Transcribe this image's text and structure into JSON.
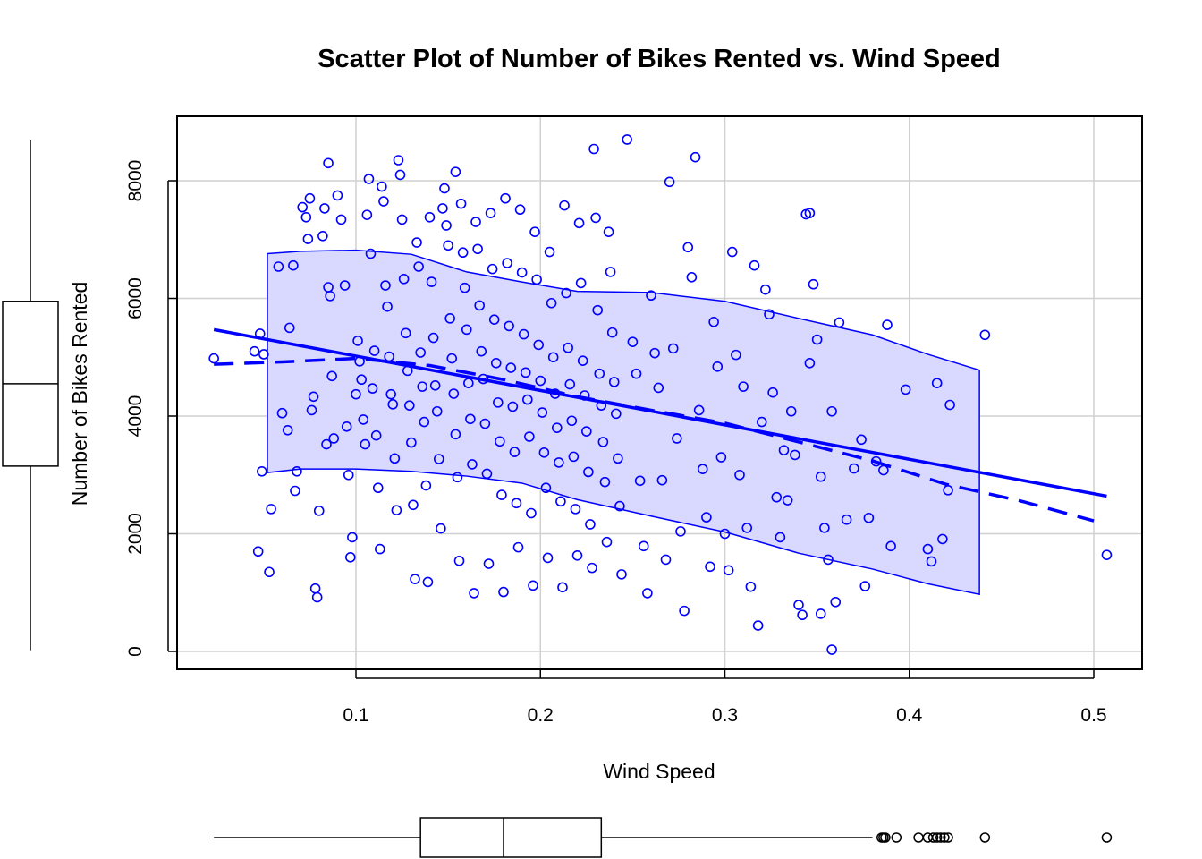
{
  "chart_data": {
    "type": "scatter",
    "title": "Scatter Plot of Number of Bikes Rented vs. Wind Speed",
    "xlabel": "Wind Speed",
    "ylabel": "Number of Bikes Rented",
    "xlim": [
      0.02,
      0.52
    ],
    "ylim": [
      -300,
      9000
    ],
    "x_ticks": [
      0.1,
      0.2,
      0.3,
      0.4,
      0.5
    ],
    "x_tick_labels": [
      "0.1",
      "0.2",
      "0.3",
      "0.4",
      "0.5"
    ],
    "y_ticks": [
      0,
      2000,
      4000,
      6000,
      8000
    ],
    "y_tick_labels": [
      "0",
      "2000",
      "4000",
      "6000",
      "8000"
    ],
    "grid": true,
    "point_color": "#0000ff",
    "band_fill": "#d9d9ff",
    "points": [
      [
        0.023,
        4980
      ],
      [
        0.045,
        5100
      ],
      [
        0.048,
        5400
      ],
      [
        0.05,
        5050
      ],
      [
        0.047,
        1700
      ],
      [
        0.053,
        1350
      ],
      [
        0.054,
        2420
      ],
      [
        0.049,
        3060
      ],
      [
        0.058,
        6540
      ],
      [
        0.06,
        4050
      ],
      [
        0.063,
        3760
      ],
      [
        0.064,
        5500
      ],
      [
        0.066,
        6560
      ],
      [
        0.067,
        2730
      ],
      [
        0.068,
        3060
      ],
      [
        0.071,
        7550
      ],
      [
        0.073,
        7380
      ],
      [
        0.074,
        7010
      ],
      [
        0.075,
        7700
      ],
      [
        0.076,
        4100
      ],
      [
        0.077,
        4330
      ],
      [
        0.078,
        1070
      ],
      [
        0.079,
        920
      ],
      [
        0.08,
        2390
      ],
      [
        0.082,
        7060
      ],
      [
        0.083,
        7530
      ],
      [
        0.084,
        3520
      ],
      [
        0.085,
        6190
      ],
      [
        0.086,
        6040
      ],
      [
        0.087,
        4680
      ],
      [
        0.088,
        3620
      ],
      [
        0.085,
        8300
      ],
      [
        0.09,
        7750
      ],
      [
        0.092,
        7340
      ],
      [
        0.094,
        6220
      ],
      [
        0.095,
        3820
      ],
      [
        0.096,
        3000
      ],
      [
        0.097,
        1600
      ],
      [
        0.098,
        1940
      ],
      [
        0.1,
        4370
      ],
      [
        0.101,
        5280
      ],
      [
        0.102,
        4930
      ],
      [
        0.103,
        4620
      ],
      [
        0.104,
        3940
      ],
      [
        0.105,
        3520
      ],
      [
        0.106,
        7420
      ],
      [
        0.107,
        8030
      ],
      [
        0.108,
        6760
      ],
      [
        0.109,
        4470
      ],
      [
        0.11,
        5110
      ],
      [
        0.111,
        3670
      ],
      [
        0.112,
        2780
      ],
      [
        0.113,
        1740
      ],
      [
        0.114,
        7900
      ],
      [
        0.115,
        7650
      ],
      [
        0.116,
        6220
      ],
      [
        0.117,
        5860
      ],
      [
        0.118,
        5010
      ],
      [
        0.119,
        4370
      ],
      [
        0.12,
        4200
      ],
      [
        0.121,
        3280
      ],
      [
        0.122,
        2400
      ],
      [
        0.123,
        8350
      ],
      [
        0.124,
        8100
      ],
      [
        0.125,
        7340
      ],
      [
        0.126,
        6330
      ],
      [
        0.127,
        5410
      ],
      [
        0.128,
        4770
      ],
      [
        0.129,
        4180
      ],
      [
        0.13,
        3550
      ],
      [
        0.131,
        2490
      ],
      [
        0.132,
        1230
      ],
      [
        0.133,
        6950
      ],
      [
        0.134,
        6540
      ],
      [
        0.135,
        5080
      ],
      [
        0.136,
        4500
      ],
      [
        0.137,
        3900
      ],
      [
        0.138,
        2820
      ],
      [
        0.139,
        1180
      ],
      [
        0.14,
        7380
      ],
      [
        0.141,
        6280
      ],
      [
        0.142,
        5330
      ],
      [
        0.143,
        4520
      ],
      [
        0.144,
        4080
      ],
      [
        0.145,
        3270
      ],
      [
        0.146,
        2090
      ],
      [
        0.147,
        7530
      ],
      [
        0.148,
        7870
      ],
      [
        0.149,
        7240
      ],
      [
        0.15,
        6900
      ],
      [
        0.151,
        5660
      ],
      [
        0.152,
        4980
      ],
      [
        0.153,
        4380
      ],
      [
        0.154,
        3690
      ],
      [
        0.155,
        2960
      ],
      [
        0.156,
        1540
      ],
      [
        0.157,
        7610
      ],
      [
        0.158,
        6780
      ],
      [
        0.159,
        6180
      ],
      [
        0.16,
        5470
      ],
      [
        0.161,
        4560
      ],
      [
        0.162,
        3950
      ],
      [
        0.163,
        3180
      ],
      [
        0.164,
        990
      ],
      [
        0.165,
        7300
      ],
      [
        0.166,
        6840
      ],
      [
        0.167,
        5880
      ],
      [
        0.168,
        5100
      ],
      [
        0.169,
        4630
      ],
      [
        0.17,
        3870
      ],
      [
        0.171,
        3020
      ],
      [
        0.172,
        1490
      ],
      [
        0.173,
        7450
      ],
      [
        0.174,
        6500
      ],
      [
        0.175,
        5640
      ],
      [
        0.176,
        4900
      ],
      [
        0.177,
        4230
      ],
      [
        0.178,
        3570
      ],
      [
        0.179,
        2660
      ],
      [
        0.18,
        1010
      ],
      [
        0.181,
        7700
      ],
      [
        0.182,
        6600
      ],
      [
        0.183,
        5530
      ],
      [
        0.184,
        4820
      ],
      [
        0.185,
        4160
      ],
      [
        0.186,
        3390
      ],
      [
        0.187,
        2520
      ],
      [
        0.188,
        1770
      ],
      [
        0.189,
        7510
      ],
      [
        0.19,
        6440
      ],
      [
        0.191,
        5390
      ],
      [
        0.192,
        4740
      ],
      [
        0.193,
        4280
      ],
      [
        0.194,
        3650
      ],
      [
        0.195,
        2350
      ],
      [
        0.196,
        1120
      ],
      [
        0.197,
        7130
      ],
      [
        0.198,
        6320
      ],
      [
        0.199,
        5210
      ],
      [
        0.2,
        4600
      ],
      [
        0.201,
        4060
      ],
      [
        0.202,
        3380
      ],
      [
        0.203,
        2780
      ],
      [
        0.204,
        1590
      ],
      [
        0.205,
        6790
      ],
      [
        0.206,
        5920
      ],
      [
        0.207,
        5000
      ],
      [
        0.208,
        4380
      ],
      [
        0.209,
        3800
      ],
      [
        0.21,
        3210
      ],
      [
        0.211,
        2550
      ],
      [
        0.212,
        1090
      ],
      [
        0.213,
        7580
      ],
      [
        0.214,
        6090
      ],
      [
        0.215,
        5160
      ],
      [
        0.216,
        4540
      ],
      [
        0.217,
        3920
      ],
      [
        0.218,
        3310
      ],
      [
        0.219,
        2420
      ],
      [
        0.22,
        1630
      ],
      [
        0.221,
        7280
      ],
      [
        0.222,
        6260
      ],
      [
        0.223,
        4940
      ],
      [
        0.224,
        4350
      ],
      [
        0.225,
        3740
      ],
      [
        0.226,
        3050
      ],
      [
        0.227,
        2160
      ],
      [
        0.228,
        1420
      ],
      [
        0.229,
        8540
      ],
      [
        0.23,
        7370
      ],
      [
        0.231,
        5800
      ],
      [
        0.232,
        4720
      ],
      [
        0.233,
        4180
      ],
      [
        0.234,
        3560
      ],
      [
        0.235,
        2880
      ],
      [
        0.236,
        1860
      ],
      [
        0.237,
        7130
      ],
      [
        0.238,
        6450
      ],
      [
        0.239,
        5420
      ],
      [
        0.24,
        4580
      ],
      [
        0.241,
        4040
      ],
      [
        0.242,
        3280
      ],
      [
        0.243,
        2470
      ],
      [
        0.244,
        1310
      ],
      [
        0.247,
        8700
      ],
      [
        0.25,
        5260
      ],
      [
        0.252,
        4720
      ],
      [
        0.254,
        2900
      ],
      [
        0.256,
        1790
      ],
      [
        0.258,
        990
      ],
      [
        0.26,
        6050
      ],
      [
        0.262,
        5070
      ],
      [
        0.264,
        4480
      ],
      [
        0.266,
        2910
      ],
      [
        0.268,
        1560
      ],
      [
        0.27,
        7980
      ],
      [
        0.272,
        5150
      ],
      [
        0.274,
        3620
      ],
      [
        0.276,
        2040
      ],
      [
        0.278,
        690
      ],
      [
        0.28,
        6870
      ],
      [
        0.282,
        6360
      ],
      [
        0.284,
        8400
      ],
      [
        0.286,
        4100
      ],
      [
        0.288,
        3100
      ],
      [
        0.29,
        2280
      ],
      [
        0.292,
        1440
      ],
      [
        0.294,
        5600
      ],
      [
        0.296,
        4840
      ],
      [
        0.298,
        3300
      ],
      [
        0.3,
        2000
      ],
      [
        0.302,
        1380
      ],
      [
        0.304,
        6790
      ],
      [
        0.306,
        5040
      ],
      [
        0.308,
        3000
      ],
      [
        0.31,
        4500
      ],
      [
        0.312,
        2100
      ],
      [
        0.314,
        1100
      ],
      [
        0.316,
        6560
      ],
      [
        0.318,
        440
      ],
      [
        0.32,
        3900
      ],
      [
        0.322,
        6150
      ],
      [
        0.324,
        5730
      ],
      [
        0.326,
        4400
      ],
      [
        0.328,
        2620
      ],
      [
        0.33,
        1940
      ],
      [
        0.332,
        3420
      ],
      [
        0.334,
        2570
      ],
      [
        0.336,
        4080
      ],
      [
        0.338,
        3340
      ],
      [
        0.34,
        790
      ],
      [
        0.342,
        620
      ],
      [
        0.344,
        7430
      ],
      [
        0.346,
        4900
      ],
      [
        0.348,
        6240
      ],
      [
        0.35,
        5300
      ],
      [
        0.352,
        2970
      ],
      [
        0.354,
        2100
      ],
      [
        0.356,
        1560
      ],
      [
        0.358,
        4080
      ],
      [
        0.358,
        30
      ],
      [
        0.36,
        840
      ],
      [
        0.362,
        5590
      ],
      [
        0.366,
        2240
      ],
      [
        0.37,
        3110
      ],
      [
        0.374,
        3600
      ],
      [
        0.376,
        1110
      ],
      [
        0.378,
        2270
      ],
      [
        0.382,
        3230
      ],
      [
        0.386,
        3080
      ],
      [
        0.388,
        5550
      ],
      [
        0.39,
        1790
      ],
      [
        0.398,
        4450
      ],
      [
        0.41,
        1740
      ],
      [
        0.412,
        1530
      ],
      [
        0.415,
        4560
      ],
      [
        0.418,
        1910
      ],
      [
        0.421,
        2740
      ],
      [
        0.422,
        4190
      ],
      [
        0.441,
        5380
      ],
      [
        0.507,
        1640
      ],
      [
        0.352,
        640
      ],
      [
        0.346,
        7450
      ],
      [
        0.154,
        8150
      ]
    ],
    "ols_line": [
      [
        0.023,
        5470
      ],
      [
        0.507,
        2640
      ]
    ],
    "smoother_line": [
      [
        0.023,
        4880
      ],
      [
        0.06,
        4920
      ],
      [
        0.1,
        4980
      ],
      [
        0.14,
        4860
      ],
      [
        0.18,
        4620
      ],
      [
        0.22,
        4330
      ],
      [
        0.26,
        4100
      ],
      [
        0.3,
        3880
      ],
      [
        0.34,
        3560
      ],
      [
        0.38,
        3240
      ],
      [
        0.42,
        2840
      ],
      [
        0.46,
        2560
      ],
      [
        0.5,
        2220
      ]
    ],
    "band_upper": [
      [
        0.052,
        6760
      ],
      [
        0.07,
        6800
      ],
      [
        0.1,
        6820
      ],
      [
        0.13,
        6750
      ],
      [
        0.16,
        6450
      ],
      [
        0.19,
        6280
      ],
      [
        0.22,
        6120
      ],
      [
        0.26,
        6100
      ],
      [
        0.3,
        5950
      ],
      [
        0.34,
        5660
      ],
      [
        0.38,
        5380
      ],
      [
        0.41,
        5050
      ],
      [
        0.438,
        4780
      ]
    ],
    "band_lower": [
      [
        0.052,
        3040
      ],
      [
        0.07,
        3100
      ],
      [
        0.1,
        3100
      ],
      [
        0.13,
        3060
      ],
      [
        0.16,
        2980
      ],
      [
        0.19,
        2860
      ],
      [
        0.22,
        2580
      ],
      [
        0.26,
        2300
      ],
      [
        0.3,
        2030
      ],
      [
        0.34,
        1670
      ],
      [
        0.38,
        1400
      ],
      [
        0.41,
        1150
      ],
      [
        0.438,
        970
      ]
    ],
    "y_boxplot": {
      "min": 20,
      "q1": 3150,
      "median": 4550,
      "q3": 5950,
      "max": 8700
    },
    "x_boxplot": {
      "whisker_low": 0.023,
      "q1": 0.135,
      "median": 0.18,
      "q3": 0.233,
      "whisker_high": 0.38,
      "outliers": [
        0.385,
        0.386,
        0.387,
        0.393,
        0.405,
        0.41,
        0.413,
        0.415,
        0.417,
        0.419,
        0.421,
        0.441,
        0.507
      ]
    }
  }
}
